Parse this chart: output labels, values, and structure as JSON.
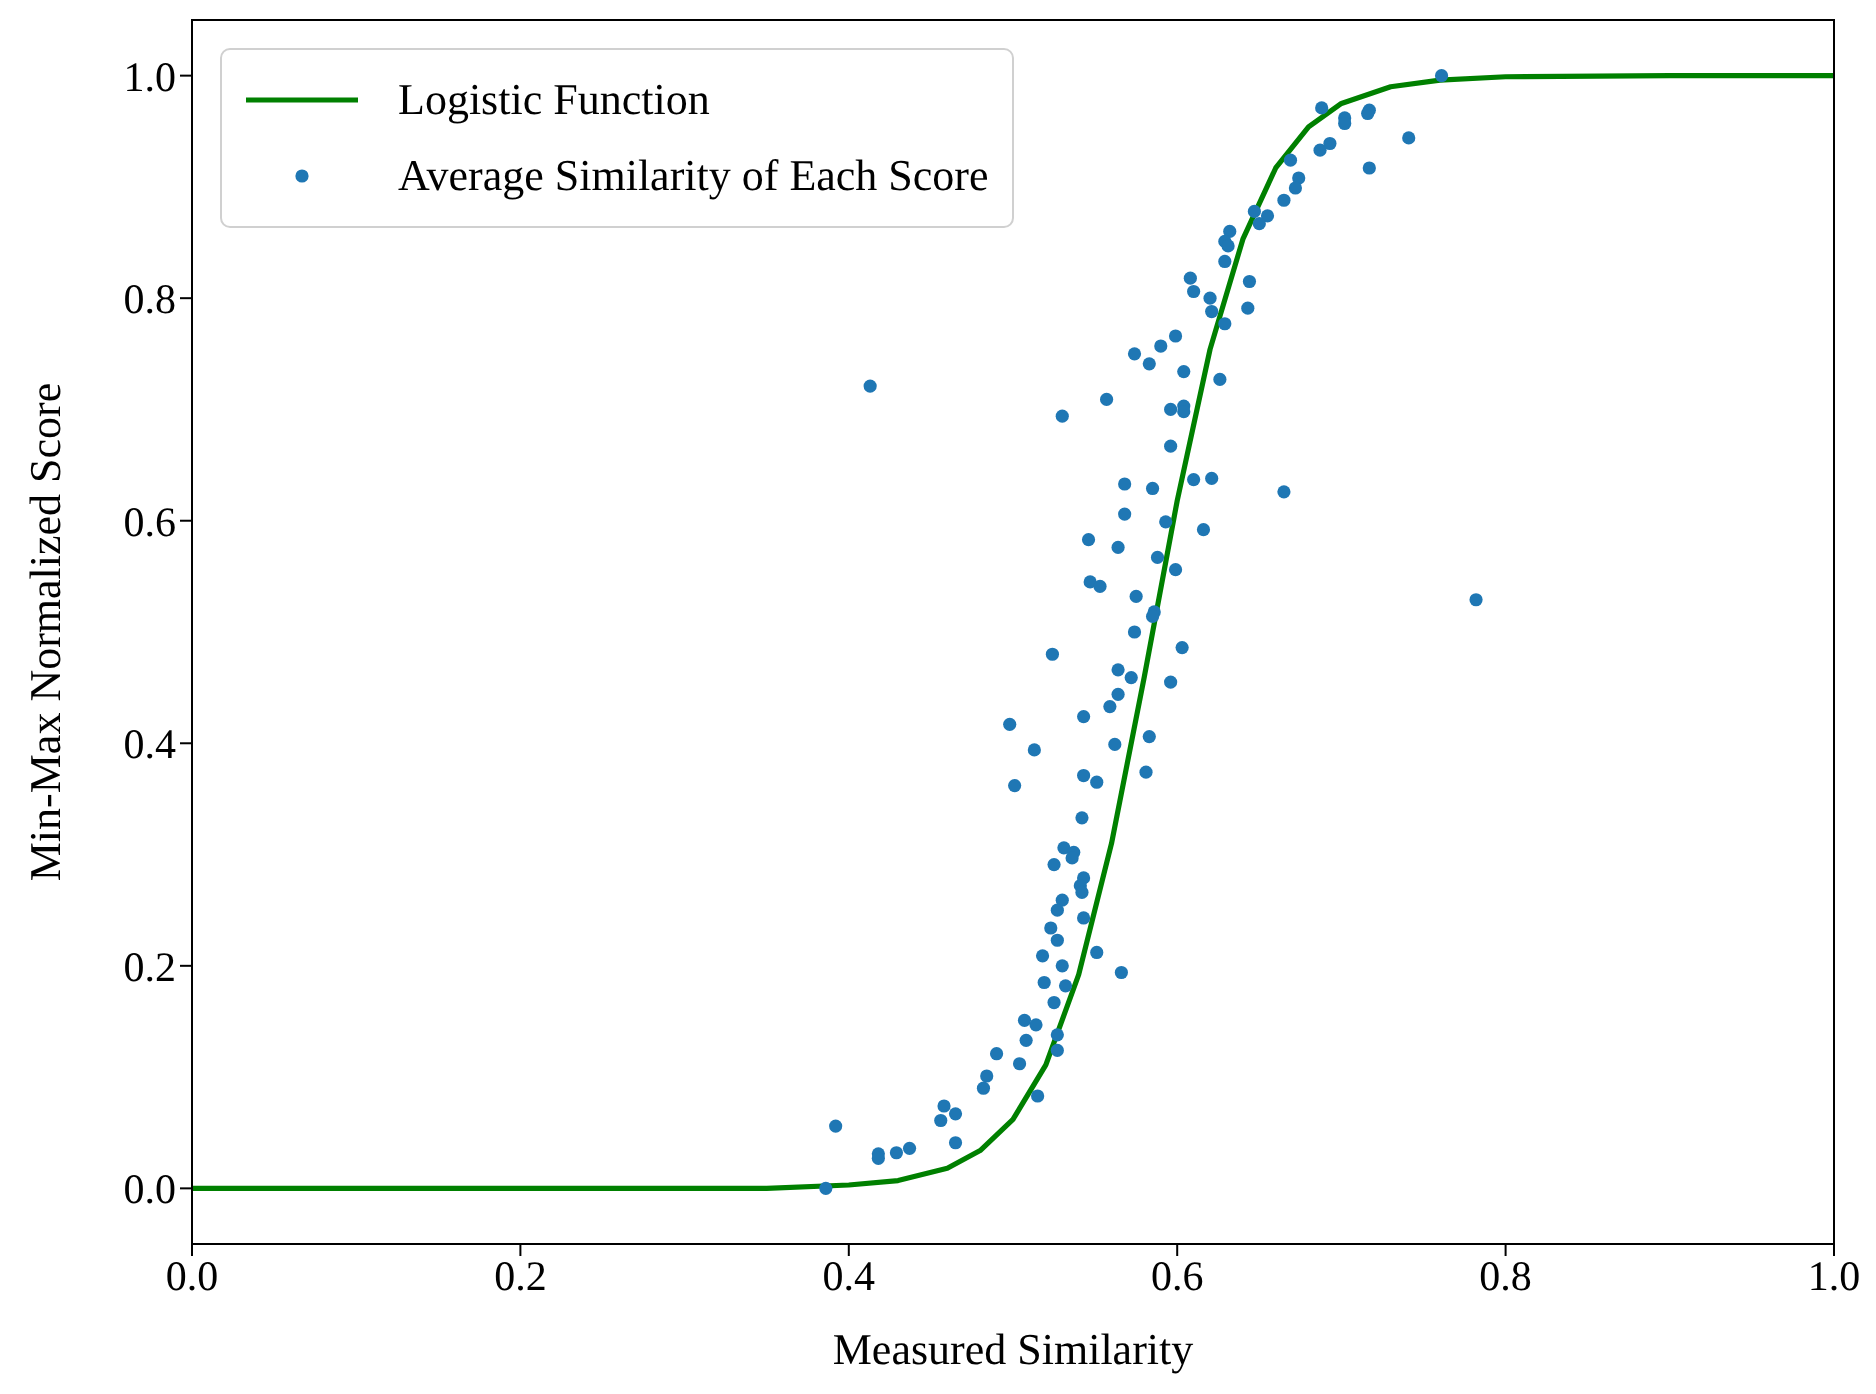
{
  "chart_data": {
    "type": "scatter",
    "xlabel": "Measured Similarity",
    "ylabel": "Min-Max Normalized Score",
    "xlim": [
      0,
      1
    ],
    "ylim": [
      -0.05,
      1.05
    ],
    "xticks": [
      {
        "value": 0,
        "label": "0.0"
      },
      {
        "value": 0.2,
        "label": "0.2"
      },
      {
        "value": 0.4,
        "label": "0.4"
      },
      {
        "value": 0.6,
        "label": "0.6"
      },
      {
        "value": 0.8,
        "label": "0.8"
      },
      {
        "value": 1,
        "label": "1.0"
      }
    ],
    "yticks": [
      {
        "value": 0,
        "label": "0.0"
      },
      {
        "value": 0.2,
        "label": "0.2"
      },
      {
        "value": 0.4,
        "label": "0.4"
      },
      {
        "value": 0.6,
        "label": "0.6"
      },
      {
        "value": 0.8,
        "label": "0.8"
      },
      {
        "value": 1,
        "label": "1.0"
      }
    ],
    "grid": false,
    "legend": "top left",
    "series": [
      {
        "name": "Logistic Function",
        "type": "line",
        "color": "#008000",
        "marker": "none",
        "line_style": "solid",
        "x": [
          0,
          0.2,
          0.3,
          0.35,
          0.4,
          0.43,
          0.46,
          0.48,
          0.5,
          0.52,
          0.54,
          0.56,
          0.58,
          0.6,
          0.62,
          0.64,
          0.66,
          0.68,
          0.7,
          0.73,
          0.76,
          0.8,
          0.9,
          1
        ],
        "values": [
          0,
          0,
          0,
          0,
          0.003,
          0.007,
          0.018,
          0.034,
          0.062,
          0.111,
          0.192,
          0.31,
          0.46,
          0.618,
          0.754,
          0.853,
          0.917,
          0.954,
          0.975,
          0.99,
          0.996,
          0.999,
          1,
          1
        ]
      },
      {
        "name": "Average Similarity of Each Score",
        "type": "scatter",
        "color": "#1f77b4",
        "marker": "circle",
        "x": [
          0.542,
          0.531,
          0.537,
          0.536,
          0.525,
          0.543,
          0.541,
          0.542,
          0.53,
          0.527,
          0.543,
          0.523,
          0.527,
          0.518,
          0.53,
          0.551,
          0.566,
          0.519,
          0.532,
          0.525,
          0.507,
          0.514,
          0.527,
          0.508,
          0.527,
          0.49,
          0.504,
          0.484,
          0.482,
          0.515,
          0.458,
          0.465,
          0.456,
          0.465,
          0.392,
          0.418,
          0.418,
          0.429,
          0.437,
          0.386,
          0.568,
          0.585,
          0.61,
          0.621,
          0.568,
          0.593,
          0.546,
          0.564,
          0.616,
          0.588,
          0.599,
          0.547,
          0.553,
          0.575,
          0.586,
          0.585,
          0.524,
          0.574,
          0.603,
          0.564,
          0.572,
          0.564,
          0.596,
          0.559,
          0.543,
          0.498,
          0.583,
          0.562,
          0.513,
          0.543,
          0.551,
          0.581,
          0.501,
          0.761,
          0.688,
          0.702,
          0.702,
          0.717,
          0.716,
          0.741,
          0.717,
          0.687,
          0.693,
          0.669,
          0.674,
          0.672,
          0.665,
          0.655,
          0.65,
          0.647,
          0.632,
          0.629,
          0.631,
          0.629,
          0.644,
          0.608,
          0.61,
          0.62,
          0.621,
          0.643,
          0.629,
          0.599,
          0.59,
          0.574,
          0.583,
          0.604,
          0.626,
          0.557,
          0.596,
          0.604,
          0.604,
          0.596,
          0.413,
          0.53,
          0.782,
          0.665
        ],
        "values": [
          0.333,
          0.306,
          0.302,
          0.297,
          0.291,
          0.279,
          0.272,
          0.266,
          0.259,
          0.25,
          0.243,
          0.234,
          0.223,
          0.209,
          0.2,
          0.212,
          0.194,
          0.185,
          0.182,
          0.167,
          0.151,
          0.147,
          0.138,
          0.133,
          0.124,
          0.121,
          0.112,
          0.101,
          0.09,
          0.083,
          0.074,
          0.067,
          0.061,
          0.041,
          0.056,
          0.031,
          0.027,
          0.032,
          0.036,
          0,
          0.633,
          0.629,
          0.637,
          0.638,
          0.606,
          0.599,
          0.583,
          0.576,
          0.592,
          0.567,
          0.556,
          0.545,
          0.541,
          0.532,
          0.518,
          0.514,
          0.48,
          0.5,
          0.486,
          0.466,
          0.459,
          0.444,
          0.455,
          0.433,
          0.424,
          0.417,
          0.406,
          0.399,
          0.394,
          0.371,
          0.365,
          0.374,
          0.362,
          1,
          0.971,
          0.962,
          0.957,
          0.969,
          0.966,
          0.944,
          0.917,
          0.933,
          0.939,
          0.924,
          0.908,
          0.899,
          0.888,
          0.874,
          0.867,
          0.878,
          0.86,
          0.851,
          0.847,
          0.833,
          0.815,
          0.818,
          0.806,
          0.8,
          0.788,
          0.791,
          0.777,
          0.766,
          0.757,
          0.75,
          0.741,
          0.734,
          0.727,
          0.709,
          0.7,
          0.703,
          0.698,
          0.667,
          0.721,
          0.694,
          0.529,
          0.626
        ]
      }
    ]
  }
}
